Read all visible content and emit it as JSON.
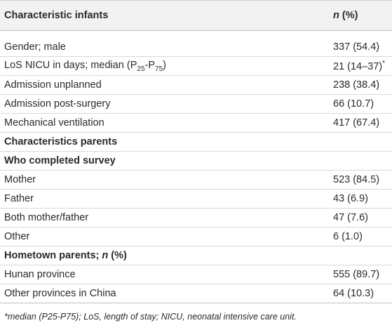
{
  "table": {
    "header": {
      "bold": true,
      "cells": [
        "Characteristic infants",
        [
          {
            "text": "n",
            "style": "i"
          },
          {
            "text": " (%)"
          }
        ]
      ]
    },
    "rows": [
      {
        "cells": [
          "Gender; male",
          "337 (54.4)"
        ]
      },
      {
        "cells": [
          [
            {
              "text": "LoS NICU in days; median (P"
            },
            {
              "text": "25",
              "style": "sub"
            },
            {
              "text": "-P"
            },
            {
              "text": "75",
              "style": "sub"
            },
            {
              "text": ")"
            }
          ],
          [
            {
              "text": "21 (14–37)"
            },
            {
              "text": "*",
              "style": "sup"
            }
          ]
        ]
      },
      {
        "cells": [
          "Admission unplanned",
          "238 (38.4)"
        ]
      },
      {
        "cells": [
          "Admission post-surgery",
          "66 (10.7)"
        ]
      },
      {
        "cells": [
          "Mechanical ventilation",
          "417 (67.4)"
        ]
      },
      {
        "bold": true,
        "cells": [
          "Characteristics parents"
        ]
      },
      {
        "bold": true,
        "cells": [
          "Who completed survey"
        ]
      },
      {
        "cells": [
          "Mother",
          "523 (84.5)"
        ]
      },
      {
        "cells": [
          "Father",
          "43 (6.9)"
        ]
      },
      {
        "cells": [
          "Both mother/father",
          "47 (7.6)"
        ]
      },
      {
        "cells": [
          "Other",
          "6 (1.0)"
        ]
      },
      {
        "bold": true,
        "cells": [
          [
            {
              "text": "Hometown parents; "
            },
            {
              "text": "n",
              "style": "i"
            },
            {
              "text": " (%)"
            }
          ]
        ]
      },
      {
        "cells": [
          "Hunan province",
          "555 (89.7)"
        ]
      },
      {
        "cells": [
          "Other provinces in China",
          "64 (10.3)"
        ]
      }
    ],
    "footnote": "*median (P25-P75); LoS, length of stay; NICU, neonatal intensive care unit."
  }
}
